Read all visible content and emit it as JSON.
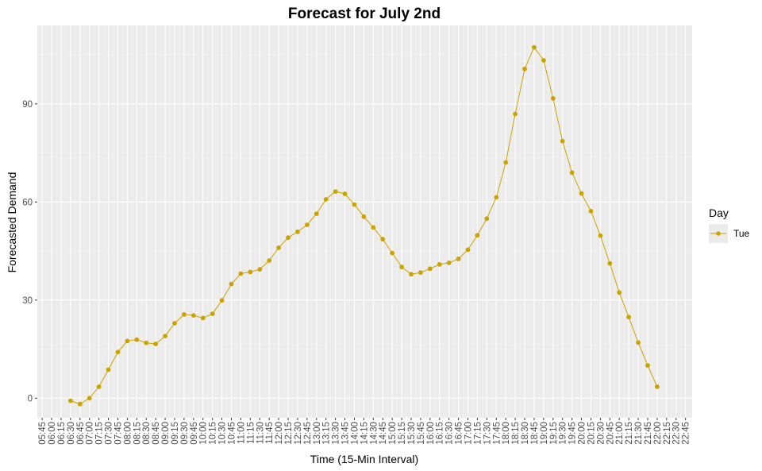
{
  "chart_data": {
    "type": "line",
    "title": "Forecast for July 2nd",
    "xlabel": "Time (15-Min Interval)",
    "ylabel": "Forecasted Demand",
    "categories": [
      "05:45",
      "06:00",
      "06:15",
      "06:30",
      "06:45",
      "07:00",
      "07:15",
      "07:30",
      "07:45",
      "08:00",
      "08:15",
      "08:30",
      "08:45",
      "09:00",
      "09:15",
      "09:30",
      "09:45",
      "10:00",
      "10:15",
      "10:30",
      "10:45",
      "11:00",
      "11:15",
      "11:30",
      "11:45",
      "12:00",
      "12:15",
      "12:30",
      "12:45",
      "13:00",
      "13:15",
      "13:30",
      "13:45",
      "14:00",
      "14:15",
      "14:30",
      "14:45",
      "15:00",
      "15:15",
      "15:30",
      "15:45",
      "16:00",
      "16:15",
      "16:30",
      "16:45",
      "17:00",
      "17:15",
      "17:30",
      "17:45",
      "18:00",
      "18:15",
      "18:30",
      "18:45",
      "19:00",
      "19:15",
      "19:30",
      "19:45",
      "20:00",
      "20:15",
      "20:30",
      "20:45",
      "21:00",
      "21:15",
      "21:30",
      "21:45",
      "22:00",
      "22:15",
      "22:30",
      "22:45"
    ],
    "yticks": [
      0,
      30,
      60,
      90
    ],
    "ylim": [
      -6,
      114
    ],
    "grid": true,
    "legend_position": "right",
    "legend_title": "Day",
    "series": [
      {
        "name": "Tue",
        "color": "#CCA300",
        "x": [
          "06:30",
          "06:45",
          "07:00",
          "07:15",
          "07:30",
          "07:45",
          "08:00",
          "08:15",
          "08:30",
          "08:45",
          "09:00",
          "09:15",
          "09:30",
          "09:45",
          "10:00",
          "10:15",
          "10:30",
          "10:45",
          "11:00",
          "11:15",
          "11:30",
          "11:45",
          "12:00",
          "12:15",
          "12:30",
          "12:45",
          "13:00",
          "13:15",
          "13:30",
          "13:45",
          "14:00",
          "14:15",
          "14:30",
          "14:45",
          "15:00",
          "15:15",
          "15:30",
          "15:45",
          "16:00",
          "16:15",
          "16:30",
          "16:45",
          "17:00",
          "17:15",
          "17:30",
          "17:45",
          "18:00",
          "18:15",
          "18:30",
          "18:45",
          "19:00",
          "19:15",
          "19:30",
          "19:45",
          "20:00",
          "20:15",
          "20:30",
          "20:45",
          "21:00",
          "21:15",
          "21:30",
          "21:45",
          "22:00"
        ],
        "values": [
          -0.8,
          -1.8,
          0.0,
          3.5,
          8.7,
          14.1,
          17.5,
          17.9,
          16.9,
          16.6,
          19.0,
          22.9,
          25.6,
          25.3,
          24.5,
          25.8,
          29.9,
          34.9,
          38.1,
          38.6,
          39.4,
          42.1,
          46.0,
          49.1,
          50.9,
          53.0,
          56.4,
          60.8,
          63.2,
          62.5,
          59.2,
          55.5,
          52.2,
          48.6,
          44.4,
          40.1,
          37.9,
          38.4,
          39.6,
          40.9,
          41.4,
          42.6,
          45.4,
          49.8,
          54.9,
          61.4,
          72.1,
          86.9,
          100.7,
          107.3,
          103.3,
          91.7,
          78.6,
          69.0,
          62.6,
          57.2,
          49.7,
          41.2,
          32.3,
          24.8,
          17.0,
          10.0,
          3.5
        ]
      }
    ]
  }
}
